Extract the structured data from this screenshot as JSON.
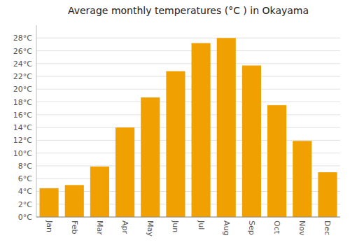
{
  "chart_data": {
    "type": "bar",
    "title": "Average monthly temperatures (°C ) in Okayama",
    "categories": [
      "Jan",
      "Feb",
      "Mar",
      "Apr",
      "May",
      "Jun",
      "Jul",
      "Aug",
      "Sep",
      "Oct",
      "Nov",
      "Dec"
    ],
    "values": [
      4.5,
      5.0,
      7.9,
      14.0,
      18.7,
      22.8,
      27.2,
      28.0,
      23.7,
      17.5,
      11.9,
      7.0
    ],
    "color": "#F0A000",
    "ylim": [
      0,
      30
    ],
    "yticks": [
      {
        "value": 0,
        "label": "0°C"
      },
      {
        "value": 2,
        "label": "2°C"
      },
      {
        "value": 4,
        "label": "4°C"
      },
      {
        "value": 6,
        "label": "6°C"
      },
      {
        "value": 8,
        "label": "8°C"
      },
      {
        "value": 10,
        "label": "10°C"
      },
      {
        "value": 12,
        "label": "12°C"
      },
      {
        "value": 14,
        "label": "14°C"
      },
      {
        "value": 16,
        "label": "16°C"
      },
      {
        "value": 18,
        "label": "18°C"
      },
      {
        "value": 20,
        "label": "20°C"
      },
      {
        "value": 22,
        "label": "22°C"
      },
      {
        "value": 24,
        "label": "24°C"
      },
      {
        "value": 26,
        "label": "26°C"
      },
      {
        "value": 28,
        "label": "28°C"
      }
    ],
    "grid": true
  }
}
